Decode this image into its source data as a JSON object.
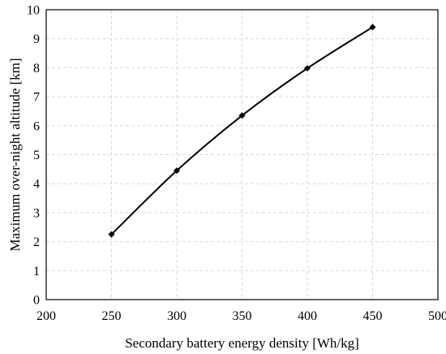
{
  "chart_data": {
    "type": "line",
    "title": "",
    "xlabel": "Secondary battery energy density [Wh/kg]",
    "ylabel": "Maximum over-night altitude [km]",
    "xlim": [
      200,
      500
    ],
    "ylim": [
      0,
      10
    ],
    "x_ticks": [
      200,
      250,
      300,
      350,
      400,
      450,
      500
    ],
    "y_ticks": [
      0,
      1,
      2,
      3,
      4,
      5,
      6,
      7,
      8,
      9,
      10
    ],
    "grid": true,
    "legend": "none",
    "series": [
      {
        "color": "#000000",
        "marker": "diamond",
        "x": [
          250,
          300,
          350,
          400,
          450
        ],
        "y": [
          2.25,
          4.45,
          6.35,
          7.98,
          9.4
        ]
      }
    ]
  }
}
